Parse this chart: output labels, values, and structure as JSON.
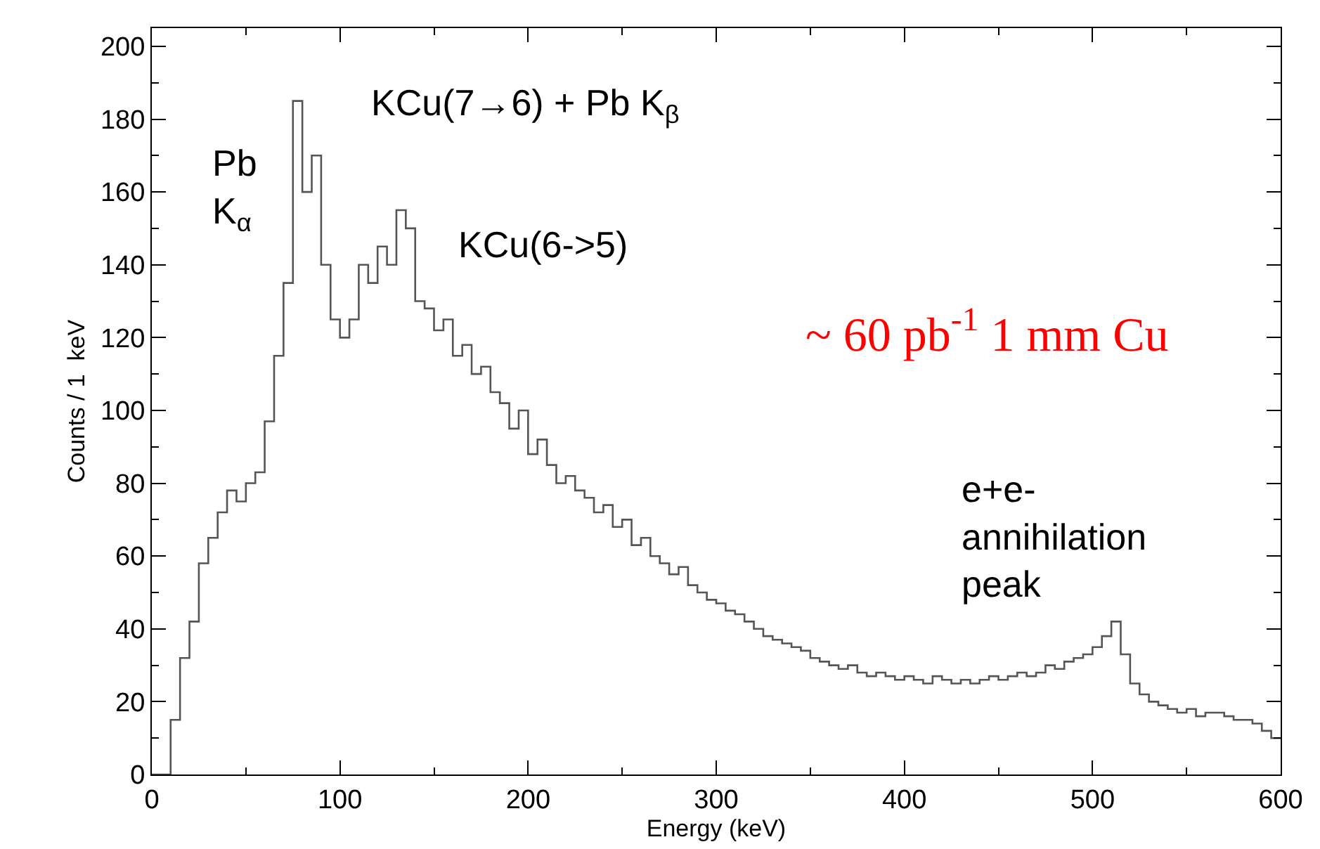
{
  "chart_data": {
    "type": "histogram",
    "xlabel": "Energy (keV)",
    "ylabel": "Counts / 1  keV",
    "bins": [
      0,
      5,
      10,
      15,
      20,
      25,
      30,
      35,
      40,
      45,
      50,
      55,
      60,
      65,
      70,
      75,
      80,
      85,
      90,
      95,
      100,
      105,
      110,
      115,
      120,
      125,
      130,
      135,
      140,
      145,
      150,
      155,
      160,
      165,
      170,
      175,
      180,
      185,
      190,
      195,
      200,
      205,
      210,
      215,
      220,
      225,
      230,
      235,
      240,
      245,
      250,
      255,
      260,
      265,
      270,
      275,
      280,
      285,
      290,
      295,
      300,
      305,
      310,
      315,
      320,
      325,
      330,
      335,
      340,
      345,
      350,
      355,
      360,
      365,
      370,
      375,
      380,
      385,
      390,
      395,
      400,
      405,
      410,
      415,
      420,
      425,
      430,
      435,
      440,
      445,
      450,
      455,
      460,
      465,
      470,
      475,
      480,
      485,
      490,
      495,
      500,
      505,
      510,
      515,
      520,
      525,
      530,
      535,
      540,
      545,
      550,
      555,
      560,
      565,
      570,
      575,
      580,
      585,
      590,
      595,
      600
    ],
    "values": [
      0,
      0,
      15,
      32,
      42,
      58,
      65,
      72,
      78,
      75,
      80,
      83,
      97,
      115,
      135,
      185,
      160,
      170,
      140,
      125,
      120,
      125,
      140,
      135,
      145,
      140,
      155,
      150,
      130,
      128,
      122,
      125,
      115,
      118,
      110,
      112,
      105,
      102,
      95,
      100,
      88,
      92,
      85,
      80,
      82,
      78,
      76,
      72,
      74,
      68,
      70,
      63,
      65,
      60,
      58,
      55,
      57,
      52,
      50,
      48,
      47,
      45,
      44,
      42,
      40,
      38,
      37,
      36,
      35,
      34,
      32,
      31,
      30,
      29,
      30,
      28,
      27,
      28,
      27,
      26,
      27,
      26,
      25,
      27,
      26,
      25,
      26,
      25,
      26,
      27,
      26,
      27,
      28,
      27,
      28,
      30,
      29,
      31,
      32,
      33,
      35,
      38,
      42,
      33,
      25,
      22,
      20,
      19,
      18,
      17,
      18,
      16,
      17,
      17,
      16,
      15,
      15,
      14,
      12,
      10
    ],
    "color": "#555555",
    "xlim": [
      0,
      600
    ],
    "xticks": [
      0,
      100,
      200,
      300,
      400,
      500,
      600
    ],
    "ylim": [
      0,
      205
    ],
    "yticks": [
      0,
      20,
      40,
      60,
      80,
      100,
      120,
      140,
      160,
      180,
      200
    ],
    "annotations": [
      "Pb\nK$_{α}$",
      "KCu(7→6) + Pb K$_{β}$",
      "KCu(6->5)",
      "~ 60 pb$^{-1}$ 1 mm Cu",
      "e+e-\nannihilation\npeak"
    ]
  }
}
